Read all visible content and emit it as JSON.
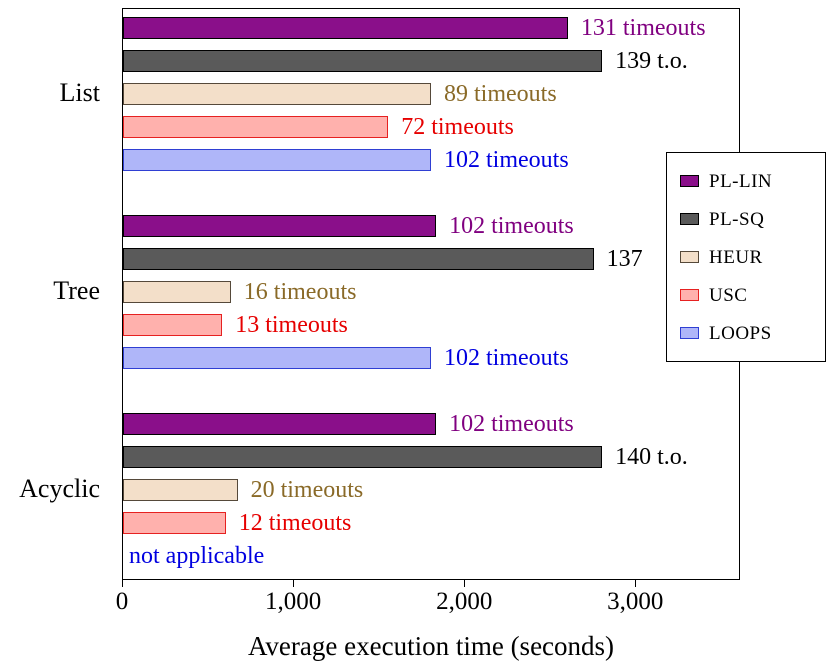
{
  "chart_data": {
    "type": "bar",
    "orientation": "horizontal",
    "xlabel": "Average execution time (seconds)",
    "xlim": [
      0,
      3600
    ],
    "grid": false,
    "legend_position": "right",
    "xticks": [
      {
        "value": 0,
        "label": "0"
      },
      {
        "value": 1000,
        "label": "1,000"
      },
      {
        "value": 2000,
        "label": "2,000"
      },
      {
        "value": 3000,
        "label": "3,000"
      }
    ],
    "axis_color": "#000000",
    "series_styles": {
      "PL-LIN": {
        "fill": "#8A0F8A",
        "border": "#000000",
        "label_color": "#800080"
      },
      "PL-SQ": {
        "fill": "#5A5A5A",
        "border": "#000000",
        "label_color": "#000000"
      },
      "HEUR": {
        "fill": "#F3DFC9",
        "border": "#55493A",
        "label_color": "#8A6A28"
      },
      "USC": {
        "fill": "#FFB1AD",
        "border": "#E62121",
        "label_color": "#E60000"
      },
      "LOOPS": {
        "fill": "#AFB6F9",
        "border": "#2F3FD3",
        "label_color": "#0000E0"
      }
    },
    "legend": {
      "entries": [
        "PL-LIN",
        "PL-SQ",
        "HEUR",
        "USC",
        "LOOPS"
      ]
    },
    "groups": [
      {
        "category": "List",
        "bars": [
          {
            "series": "PL-LIN",
            "value": 2600,
            "label": "131 timeouts"
          },
          {
            "series": "PL-SQ",
            "value": 2800,
            "label": "139 t.o."
          },
          {
            "series": "HEUR",
            "value": 1800,
            "label": "89 timeouts"
          },
          {
            "series": "USC",
            "value": 1550,
            "label": "72 timeouts"
          },
          {
            "series": "LOOPS",
            "value": 1800,
            "label": "102 timeouts"
          }
        ]
      },
      {
        "category": "Tree",
        "bars": [
          {
            "series": "PL-LIN",
            "value": 1830,
            "label": "102 timeouts"
          },
          {
            "series": "PL-SQ",
            "value": 2750,
            "label": "137"
          },
          {
            "series": "HEUR",
            "value": 630,
            "label": "16 timeouts"
          },
          {
            "series": "USC",
            "value": 580,
            "label": "13 timeouts"
          },
          {
            "series": "LOOPS",
            "value": 1800,
            "label": "102 timeouts"
          }
        ]
      },
      {
        "category": "Acyclic",
        "bars": [
          {
            "series": "PL-LIN",
            "value": 1830,
            "label": "102 timeouts"
          },
          {
            "series": "PL-SQ",
            "value": 2800,
            "label": "140 t.o."
          },
          {
            "series": "HEUR",
            "value": 670,
            "label": "20 timeouts"
          },
          {
            "series": "USC",
            "value": 600,
            "label": "12 timeouts"
          },
          {
            "series": "LOOPS",
            "value": null,
            "label": "not applicable"
          }
        ]
      }
    ]
  }
}
